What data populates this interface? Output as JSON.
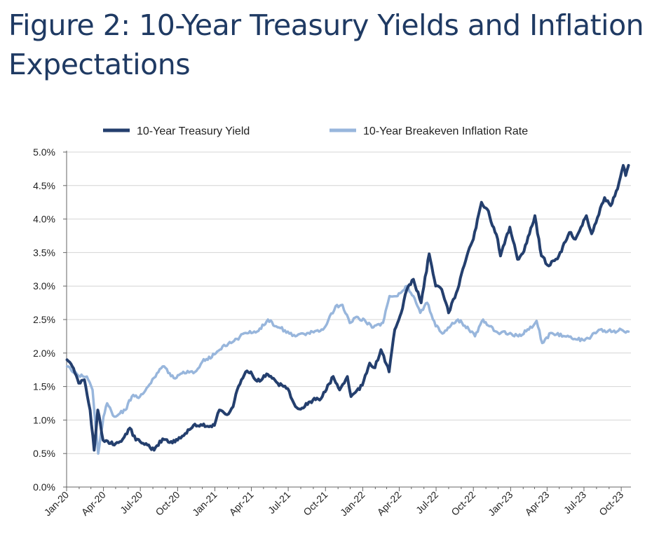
{
  "title_line1": "Figure 2: 10-Year Treasury Yields and Inflation",
  "title_line2": "Expectations",
  "chart_data": {
    "type": "line",
    "y_tick_labels": [
      "0.0%",
      "0.5%",
      "1.0%",
      "1.5%",
      "2.0%",
      "2.5%",
      "3.0%",
      "3.5%",
      "4.0%",
      "4.5%",
      "5.0%"
    ],
    "x_tick_labels": [
      "Jan-20",
      "Apr-20",
      "Jul-20",
      "Oct-20",
      "Jan-21",
      "Apr-21",
      "Jul-21",
      "Oct-21",
      "Jan-22",
      "Apr-22",
      "Jul-22",
      "Oct-22",
      "Jan-23",
      "Apr-23",
      "Jul-23",
      "Oct-23"
    ],
    "ylim": [
      0,
      5
    ],
    "grid": true,
    "legend_position": "top",
    "series": [
      {
        "name": "10-Year Treasury Yield",
        "color": "#243f6e",
        "points": [
          [
            "2020-01-02",
            1.9
          ],
          [
            "2020-01-15",
            1.8
          ],
          [
            "2020-01-31",
            1.55
          ],
          [
            "2020-02-14",
            1.6
          ],
          [
            "2020-02-28",
            1.15
          ],
          [
            "2020-03-09",
            0.55
          ],
          [
            "2020-03-18",
            1.15
          ],
          [
            "2020-03-31",
            0.7
          ],
          [
            "2020-04-15",
            0.65
          ],
          [
            "2020-05-01",
            0.65
          ],
          [
            "2020-05-15",
            0.68
          ],
          [
            "2020-06-05",
            0.88
          ],
          [
            "2020-06-20",
            0.7
          ],
          [
            "2020-07-15",
            0.65
          ],
          [
            "2020-08-04",
            0.55
          ],
          [
            "2020-08-25",
            0.72
          ],
          [
            "2020-09-15",
            0.68
          ],
          [
            "2020-10-01",
            0.7
          ],
          [
            "2020-10-20",
            0.8
          ],
          [
            "2020-11-09",
            0.92
          ],
          [
            "2020-12-01",
            0.92
          ],
          [
            "2020-12-31",
            0.92
          ],
          [
            "2021-01-12",
            1.15
          ],
          [
            "2021-01-31",
            1.08
          ],
          [
            "2021-02-15",
            1.2
          ],
          [
            "2021-02-25",
            1.45
          ],
          [
            "2021-03-18",
            1.72
          ],
          [
            "2021-03-31",
            1.72
          ],
          [
            "2021-04-15",
            1.58
          ],
          [
            "2021-05-12",
            1.68
          ],
          [
            "2021-06-05",
            1.55
          ],
          [
            "2021-06-30",
            1.47
          ],
          [
            "2021-07-19",
            1.2
          ],
          [
            "2021-08-04",
            1.18
          ],
          [
            "2021-08-31",
            1.3
          ],
          [
            "2021-09-20",
            1.32
          ],
          [
            "2021-10-20",
            1.65
          ],
          [
            "2021-11-05",
            1.45
          ],
          [
            "2021-11-24",
            1.65
          ],
          [
            "2021-12-03",
            1.35
          ],
          [
            "2021-12-31",
            1.52
          ],
          [
            "2022-01-18",
            1.85
          ],
          [
            "2022-01-31",
            1.78
          ],
          [
            "2022-02-15",
            2.05
          ],
          [
            "2022-03-07",
            1.72
          ],
          [
            "2022-03-21",
            2.35
          ],
          [
            "2022-04-06",
            2.6
          ],
          [
            "2022-04-19",
            2.93
          ],
          [
            "2022-05-06",
            3.1
          ],
          [
            "2022-05-25",
            2.75
          ],
          [
            "2022-06-14",
            3.48
          ],
          [
            "2022-06-30",
            3.0
          ],
          [
            "2022-07-15",
            2.95
          ],
          [
            "2022-08-01",
            2.6
          ],
          [
            "2022-08-20",
            2.9
          ],
          [
            "2022-09-15",
            3.45
          ],
          [
            "2022-10-01",
            3.7
          ],
          [
            "2022-10-21",
            4.25
          ],
          [
            "2022-11-04",
            4.15
          ],
          [
            "2022-11-30",
            3.7
          ],
          [
            "2022-12-07",
            3.45
          ],
          [
            "2022-12-30",
            3.88
          ],
          [
            "2023-01-18",
            3.4
          ],
          [
            "2023-02-03",
            3.52
          ],
          [
            "2023-03-02",
            4.05
          ],
          [
            "2023-03-18",
            3.45
          ],
          [
            "2023-04-05",
            3.3
          ],
          [
            "2023-04-30",
            3.45
          ],
          [
            "2023-05-26",
            3.8
          ],
          [
            "2023-06-10",
            3.7
          ],
          [
            "2023-07-07",
            4.05
          ],
          [
            "2023-07-20",
            3.78
          ],
          [
            "2023-08-21",
            4.32
          ],
          [
            "2023-09-05",
            4.2
          ],
          [
            "2023-09-22",
            4.45
          ],
          [
            "2023-10-06",
            4.8
          ],
          [
            "2023-10-12",
            4.65
          ],
          [
            "2023-10-19",
            4.8
          ]
        ]
      },
      {
        "name": "10-Year Breakeven Inflation  Rate",
        "color": "#98b6dc",
        "points": [
          [
            "2020-01-02",
            1.8
          ],
          [
            "2020-01-31",
            1.66
          ],
          [
            "2020-02-20",
            1.65
          ],
          [
            "2020-03-05",
            1.45
          ],
          [
            "2020-03-19",
            0.5
          ],
          [
            "2020-04-01",
            1.05
          ],
          [
            "2020-04-10",
            1.25
          ],
          [
            "2020-04-28",
            1.05
          ],
          [
            "2020-05-25",
            1.15
          ],
          [
            "2020-06-10",
            1.35
          ],
          [
            "2020-06-30",
            1.35
          ],
          [
            "2020-07-20",
            1.5
          ],
          [
            "2020-08-11",
            1.7
          ],
          [
            "2020-08-25",
            1.8
          ],
          [
            "2020-09-25",
            1.62
          ],
          [
            "2020-10-15",
            1.72
          ],
          [
            "2020-11-09",
            1.7
          ],
          [
            "2020-12-01",
            1.87
          ],
          [
            "2020-12-31",
            1.98
          ],
          [
            "2021-01-20",
            2.1
          ],
          [
            "2021-02-10",
            2.15
          ],
          [
            "2021-03-18",
            2.3
          ],
          [
            "2021-04-15",
            2.32
          ],
          [
            "2021-05-12",
            2.5
          ],
          [
            "2021-06-01",
            2.4
          ],
          [
            "2021-06-30",
            2.32
          ],
          [
            "2021-07-19",
            2.25
          ],
          [
            "2021-08-20",
            2.3
          ],
          [
            "2021-09-15",
            2.32
          ],
          [
            "2021-10-01",
            2.4
          ],
          [
            "2021-10-26",
            2.7
          ],
          [
            "2021-11-12",
            2.72
          ],
          [
            "2021-11-30",
            2.45
          ],
          [
            "2021-12-10",
            2.52
          ],
          [
            "2022-01-05",
            2.5
          ],
          [
            "2022-01-24",
            2.38
          ],
          [
            "2022-02-20",
            2.45
          ],
          [
            "2022-03-08",
            2.85
          ],
          [
            "2022-03-28",
            2.85
          ],
          [
            "2022-04-20",
            3.0
          ],
          [
            "2022-05-06",
            2.85
          ],
          [
            "2022-05-23",
            2.6
          ],
          [
            "2022-06-09",
            2.75
          ],
          [
            "2022-06-30",
            2.4
          ],
          [
            "2022-07-20",
            2.3
          ],
          [
            "2022-08-10",
            2.45
          ],
          [
            "2022-08-24",
            2.5
          ],
          [
            "2022-09-20",
            2.35
          ],
          [
            "2022-10-05",
            2.25
          ],
          [
            "2022-10-25",
            2.5
          ],
          [
            "2022-11-10",
            2.4
          ],
          [
            "2022-12-01",
            2.3
          ],
          [
            "2022-12-31",
            2.3
          ],
          [
            "2023-01-20",
            2.25
          ],
          [
            "2023-02-15",
            2.35
          ],
          [
            "2023-03-06",
            2.48
          ],
          [
            "2023-03-20",
            2.15
          ],
          [
            "2023-04-10",
            2.3
          ],
          [
            "2023-05-15",
            2.25
          ],
          [
            "2023-06-15",
            2.2
          ],
          [
            "2023-07-12",
            2.22
          ],
          [
            "2023-08-10",
            2.35
          ],
          [
            "2023-09-10",
            2.32
          ],
          [
            "2023-10-01",
            2.35
          ],
          [
            "2023-10-19",
            2.32
          ]
        ]
      }
    ]
  }
}
